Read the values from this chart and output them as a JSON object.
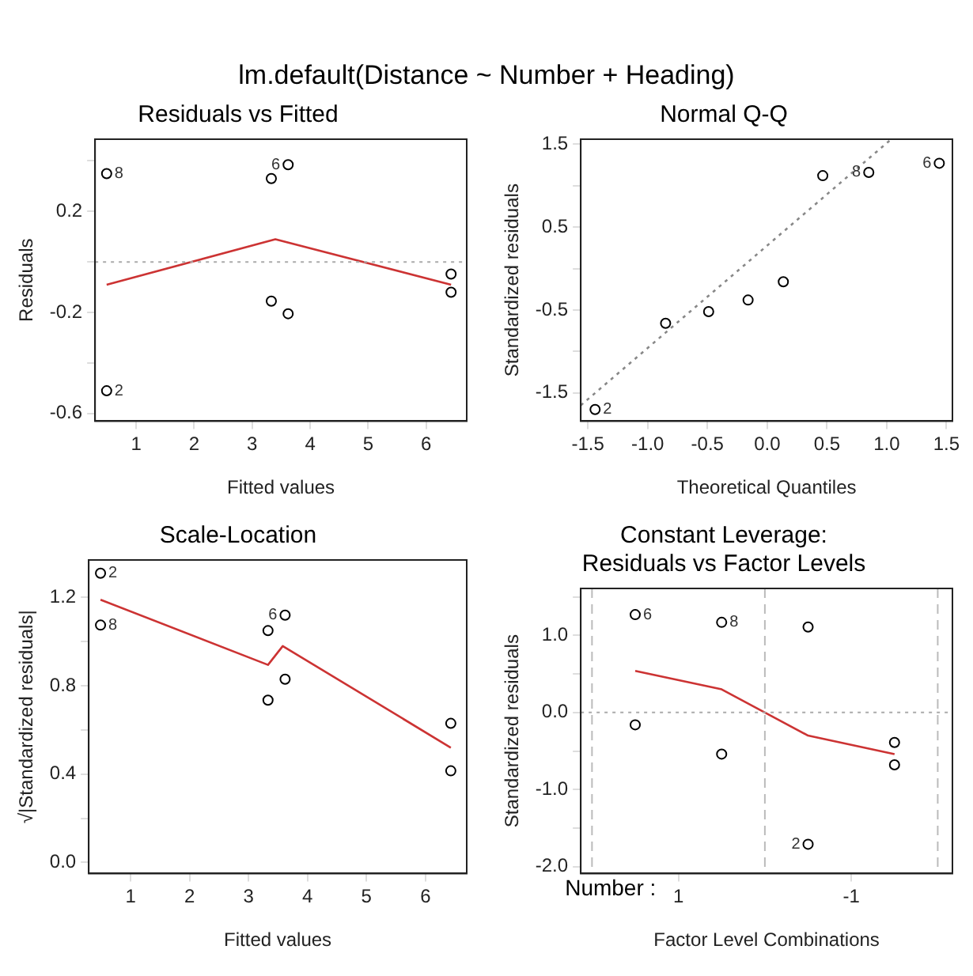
{
  "chart_data": [
    {
      "type": "scatter",
      "title": "Residuals vs Fitted",
      "xlabel": "Fitted values",
      "ylabel": "Residuals",
      "annotations": [
        "lm.default(Distance ~ Number + Heading)",
        {
          "text": "8",
          "x": 0.49,
          "y": 0.35
        },
        {
          "text": "2",
          "x": 0.49,
          "y": -0.51
        },
        {
          "text": "6",
          "x": 3.62,
          "y": 0.385
        }
      ],
      "xlim": [
        0.29,
        6.7
      ],
      "xticks": [
        1,
        2,
        3,
        4,
        5,
        6
      ],
      "ylim": [
        -0.63,
        0.486
      ],
      "yticks": [
        {
          "value": 0.4,
          "label": null
        },
        0.2,
        {
          "value": 0,
          "label": null
        },
        -0.2,
        {
          "value": -0.4,
          "label": null
        },
        -0.6
      ],
      "ref_lines": [
        {
          "axis": "y",
          "value": 0,
          "color": "#aaaaaa",
          "line_style": "dotted"
        }
      ],
      "series": [
        {
          "type": "scatter",
          "marker": "circle",
          "color": "#000000",
          "x": [
            0.49,
            0.49,
            3.33,
            3.62,
            3.33,
            3.62,
            6.43,
            6.43
          ],
          "values": [
            0.35,
            -0.51,
            0.33,
            0.385,
            -0.155,
            -0.205,
            -0.048,
            -0.12
          ]
        },
        {
          "type": "line",
          "marker": "none",
          "color": "#cc3333",
          "x": [
            0.49,
            3.4,
            6.43
          ],
          "values": [
            -0.09,
            0.09,
            -0.09
          ]
        }
      ]
    },
    {
      "type": "scatter",
      "title": "Normal Q-Q",
      "xlabel": "Theoretical Quantiles",
      "ylabel": "Standardized residuals",
      "annotations": [
        {
          "text": "2",
          "x": -1.44,
          "y": -1.7
        },
        {
          "text": "8",
          "x": 0.85,
          "y": 1.16
        },
        {
          "text": "6",
          "x": 1.44,
          "y": 1.27
        }
      ],
      "xlim": [
        -1.56,
        1.55
      ],
      "xticks": [
        -1.5,
        {
          "value": -1,
          "label": "-1.0"
        },
        -0.5,
        {
          "value": 0,
          "label": "0.0"
        },
        0.5,
        {
          "value": 1,
          "label": "1.0"
        },
        1.5
      ],
      "ylim": [
        -1.84,
        1.56
      ],
      "yticks": [
        1.5,
        {
          "value": 1,
          "label": null
        },
        0.5,
        {
          "value": 0,
          "label": null
        },
        -0.5,
        {
          "value": -1,
          "label": null
        },
        -1.5
      ],
      "series": [
        {
          "type": "scatter",
          "marker": "circle",
          "color": "#000000",
          "x": [
            -1.44,
            -0.85,
            -0.49,
            -0.16,
            0.135,
            0.465,
            0.85,
            1.44
          ],
          "values": [
            -1.7,
            -0.66,
            -0.52,
            -0.38,
            -0.16,
            1.12,
            1.16,
            1.27
          ]
        },
        {
          "type": "line",
          "marker": "none",
          "color": "#888888",
          "line_style": "dotted",
          "x": [
            -1.56,
            1.03
          ],
          "values": [
            -1.65,
            1.55
          ]
        }
      ]
    },
    {
      "type": "scatter",
      "title": "Scale-Location",
      "xlabel": "Fitted values",
      "ylabel": "√|Standardized residuals|",
      "annotations": [
        {
          "text": "2",
          "x": 0.49,
          "y": 1.31
        },
        {
          "text": "8",
          "x": 0.49,
          "y": 1.075
        },
        {
          "text": "6",
          "x": 3.62,
          "y": 1.12
        }
      ],
      "xlim": [
        0.29,
        6.7
      ],
      "xticks": [
        1,
        2,
        3,
        4,
        5,
        6
      ],
      "ylim": [
        -0.05,
        1.37
      ],
      "yticks": [
        {
          "value": 0,
          "label": "0.0"
        },
        {
          "value": 0.2,
          "label": null
        },
        0.4,
        {
          "value": 0.6,
          "label": null
        },
        0.8,
        {
          "value": 1,
          "label": null
        },
        1.2
      ],
      "series": [
        {
          "type": "scatter",
          "marker": "circle",
          "color": "#000000",
          "x": [
            0.49,
            0.49,
            3.33,
            3.62,
            3.33,
            3.62,
            6.43,
            6.43
          ],
          "values": [
            1.31,
            1.075,
            1.05,
            1.12,
            0.735,
            0.83,
            0.63,
            0.415
          ]
        },
        {
          "type": "line",
          "marker": "none",
          "color": "#cc3333",
          "x": [
            0.49,
            3.33,
            3.58,
            6.43
          ],
          "values": [
            1.19,
            0.895,
            0.98,
            0.52
          ]
        }
      ]
    },
    {
      "type": "scatter",
      "title": "Constant Leverage:\nResiduals vs Factor Levels",
      "xlabel": "Factor Level Combinations",
      "ylabel": "Standardized residuals",
      "annotations": [
        "Number :",
        {
          "text": "6",
          "x": 1.5,
          "y": 1.27
        },
        {
          "text": "8",
          "x": 0.5,
          "y": 1.17
        },
        {
          "text": "2",
          "x": -0.5,
          "y": -1.71
        }
      ],
      "xlim": [
        2.13,
        -2.17
      ],
      "xticks": [
        1,
        -1
      ],
      "ylim": [
        -2.09,
        1.61
      ],
      "yticks": [
        {
          "value": 1.5,
          "label": null
        },
        {
          "value": 1,
          "label": "1.0"
        },
        {
          "value": 0.5,
          "label": null
        },
        {
          "value": 0,
          "label": "0.0"
        },
        {
          "value": -0.5,
          "label": null
        },
        {
          "value": -1,
          "label": "-1.0"
        },
        {
          "value": -1.5,
          "label": null
        },
        {
          "value": -2,
          "label": "-2.0"
        }
      ],
      "ref_lines": [
        {
          "axis": "y",
          "value": 0,
          "color": "#aaaaaa",
          "line_style": "dotted"
        },
        {
          "axis": "x",
          "value": 2,
          "color": "#bbbbbb",
          "line_style": "dashed"
        },
        {
          "axis": "x",
          "value": 0,
          "color": "#bbbbbb",
          "line_style": "dashed"
        },
        {
          "axis": "x",
          "value": -2,
          "color": "#bbbbbb",
          "line_style": "dashed"
        }
      ],
      "series": [
        {
          "type": "scatter",
          "marker": "circle",
          "color": "#000000",
          "x": [
            1.5,
            1.5,
            0.5,
            0.5,
            -0.5,
            -0.5,
            -1.5,
            -1.5
          ],
          "values": [
            1.27,
            -0.16,
            1.17,
            -0.54,
            1.11,
            -1.71,
            -0.39,
            -0.68
          ]
        },
        {
          "type": "line",
          "marker": "none",
          "color": "#cc3333",
          "x": [
            1.5,
            0.5,
            0,
            -0.5,
            -1.5
          ],
          "values": [
            0.54,
            0.3,
            0,
            -0.3,
            -0.54
          ]
        }
      ]
    }
  ]
}
